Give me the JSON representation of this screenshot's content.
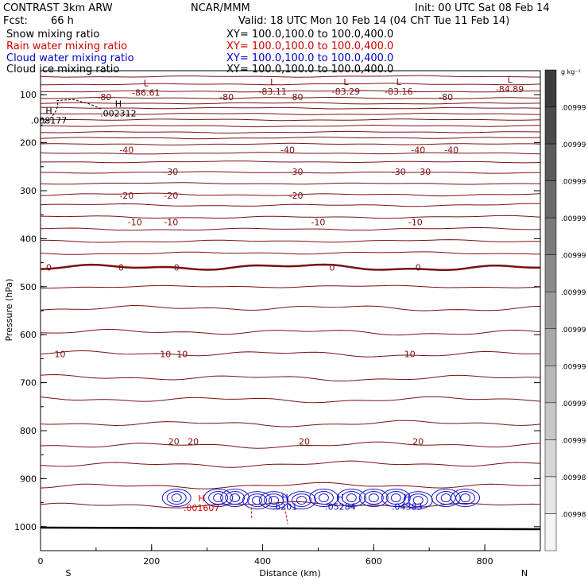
{
  "header": {
    "model": "CONTRAST  3km ARW",
    "center": "NCAR/MMM",
    "init": "Init: 00 UTC Sat 08 Feb 14",
    "fcst_label": "Fcst:",
    "fcst_value": "66 h",
    "valid": "Valid: 18 UTC Mon 10 Feb 14 (04 ChT Tue 11 Feb 14)",
    "fields": [
      {
        "name": "Snow mixing ratio",
        "xy": "XY= 100.0,100.0 to 100.0,400.0",
        "color": "#000000"
      },
      {
        "name": "Rain water mixing ratio",
        "xy": "XY= 100.0,100.0 to 100.0,400.0",
        "color": "#d00000"
      },
      {
        "name": "Cloud water mixing ratio",
        "xy": "XY= 100.0,100.0 to 100.0,400.0",
        "color": "#0000c8"
      },
      {
        "name": "Cloud ice mixing ratio",
        "xy": "XY= 100.0,100.0 to 100.0,400.0",
        "color": "#000000"
      }
    ]
  },
  "chart_data": {
    "type": "contour",
    "xlabel": "Distance (km)",
    "ylabel": "Pressure (hPa)",
    "xlim": [
      0,
      900
    ],
    "ylim": [
      1050,
      50
    ],
    "x_ticks": [
      0,
      200,
      400,
      600,
      800
    ],
    "y_ticks": [
      100,
      200,
      300,
      400,
      500,
      600,
      700,
      800,
      900,
      1000
    ],
    "x_end_labels": {
      "left": "S",
      "right": "N"
    },
    "temperature_contours": [
      {
        "p": 105,
        "labels": [
          {
            "x": 115,
            "text": "-80"
          },
          {
            "x": 335,
            "text": "-80"
          },
          {
            "x": 460,
            "text": "-80"
          },
          {
            "x": 730,
            "text": "-80"
          }
        ]
      },
      {
        "p": 215,
        "labels": [
          {
            "x": 155,
            "text": "-40"
          },
          {
            "x": 445,
            "text": "-40"
          },
          {
            "x": 680,
            "text": "-40"
          },
          {
            "x": 740,
            "text": "-40"
          }
        ]
      },
      {
        "p": 260,
        "labels": [
          {
            "x": 235,
            "text": "-30"
          },
          {
            "x": 460,
            "text": "-30"
          },
          {
            "x": 645,
            "text": "-30"
          },
          {
            "x": 690,
            "text": "-30"
          }
        ]
      },
      {
        "p": 310,
        "labels": [
          {
            "x": 155,
            "text": "-20"
          },
          {
            "x": 235,
            "text": "-20"
          },
          {
            "x": 460,
            "text": "-20"
          }
        ]
      },
      {
        "p": 365,
        "labels": [
          {
            "x": 170,
            "text": "-10"
          },
          {
            "x": 235,
            "text": "-10"
          },
          {
            "x": 500,
            "text": "-10"
          },
          {
            "x": 675,
            "text": "-10"
          }
        ]
      },
      {
        "p": 460,
        "labels": [
          {
            "x": 15,
            "text": "0"
          },
          {
            "x": 145,
            "text": "0"
          },
          {
            "x": 245,
            "text": "0"
          },
          {
            "x": 525,
            "text": "0"
          },
          {
            "x": 680,
            "text": "0"
          }
        ]
      },
      {
        "p": 640,
        "labels": [
          {
            "x": 35,
            "text": "10"
          },
          {
            "x": 225,
            "text": "10"
          },
          {
            "x": 255,
            "text": "10"
          },
          {
            "x": 665,
            "text": "10"
          }
        ]
      },
      {
        "p": 822,
        "labels": [
          {
            "x": 240,
            "text": "20"
          },
          {
            "x": 275,
            "text": "20"
          },
          {
            "x": 475,
            "text": "20"
          },
          {
            "x": 680,
            "text": "20"
          }
        ]
      }
    ],
    "highs_lows": [
      {
        "kind": "L",
        "x": 190,
        "p": 82,
        "value": "-86.61",
        "color": "#7a1010"
      },
      {
        "kind": "L",
        "x": 418,
        "p": 80,
        "value": "-83.11",
        "color": "#7a1010"
      },
      {
        "kind": "L",
        "x": 550,
        "p": 80,
        "value": "-83.29",
        "color": "#7a1010"
      },
      {
        "kind": "L",
        "x": 645,
        "p": 80,
        "value": "-83.16",
        "color": "#7a1010"
      },
      {
        "kind": "L",
        "x": 845,
        "p": 75,
        "value": "-84.89",
        "color": "#7a1010"
      },
      {
        "kind": "H",
        "x": 15,
        "p": 140,
        "value": ".008177",
        "color": "#000000"
      },
      {
        "kind": "H",
        "x": 140,
        "p": 125,
        "value": ".002312",
        "color": "#000000"
      },
      {
        "kind": "H",
        "x": 290,
        "p": 947,
        "value": ".001607",
        "color": "#d00000"
      },
      {
        "kind": "H",
        "x": 440,
        "p": 945,
        "value": ".6201",
        "color": "#0000c8"
      },
      {
        "kind": "H",
        "x": 540,
        "p": 945,
        "value": ".05284",
        "color": "#0000c8"
      },
      {
        "kind": "H",
        "x": 660,
        "p": 945,
        "value": ".04383",
        "color": "#0000c8"
      }
    ],
    "colorbar": {
      "unit": "g kg⁻¹",
      "labels": [
        ".00999",
        ".00999",
        ".00999",
        ".00999",
        ".00999",
        ".00999",
        ".00999",
        ".00999",
        ".00999",
        ".00999",
        ".00998",
        ".00998"
      ]
    }
  }
}
